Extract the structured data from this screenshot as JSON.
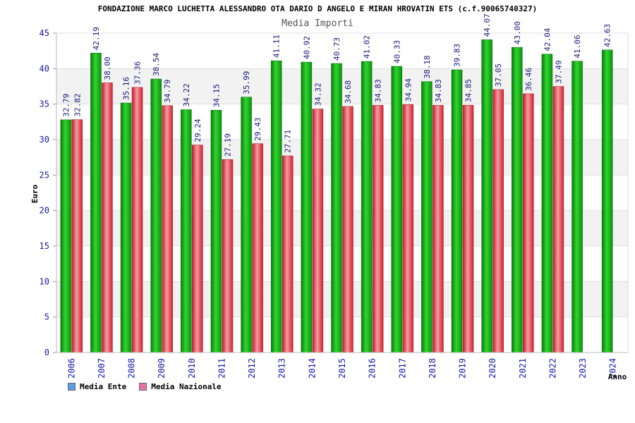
{
  "chart_data": {
    "type": "bar",
    "title": "FONDAZIONE MARCO LUCHETTA ALESSANDRO OTA DARIO D ANGELO E MIRAN HROVATIN ETS (c.f.90065740327)",
    "subtitle": "Media Importi",
    "xlabel": "Anno",
    "ylabel": "Euro",
    "ylim": [
      0,
      45
    ],
    "yticks": [
      0,
      5,
      10,
      15,
      20,
      25,
      30,
      35,
      40,
      45
    ],
    "grid": true,
    "legend_position": "bottom-left",
    "categories": [
      "2006",
      "2007",
      "2008",
      "2009",
      "2010",
      "2011",
      "2012",
      "2013",
      "2014",
      "2015",
      "2016",
      "2017",
      "2018",
      "2019",
      "2020",
      "2021",
      "2022",
      "2023",
      "2024"
    ],
    "series": [
      {
        "name": "Media Ente",
        "color": "#11b311",
        "legend_color": "#5b9ee6",
        "values": [
          32.79,
          42.19,
          35.16,
          38.54,
          34.22,
          34.15,
          35.99,
          41.11,
          40.92,
          40.73,
          41.02,
          40.33,
          38.18,
          39.83,
          44.07,
          43.0,
          42.04,
          41.06,
          42.63
        ],
        "labels": [
          "32.79",
          "42.19",
          "35.16",
          "38.54",
          "34.22",
          "34.15",
          "35.99",
          "41.11",
          "40.92",
          "40.73",
          "41.02",
          "40.33",
          "38.18",
          "39.83",
          "44.07",
          "43.00",
          "42.04",
          "41.06",
          "42.63"
        ]
      },
      {
        "name": "Media Nazionale",
        "color": "#e8323c",
        "legend_color": "#e673a8",
        "values": [
          32.82,
          38.0,
          37.36,
          34.79,
          29.24,
          27.19,
          29.43,
          27.71,
          34.32,
          34.68,
          34.83,
          34.94,
          34.83,
          34.85,
          37.05,
          36.46,
          37.49,
          null,
          null
        ],
        "labels": [
          "32.82",
          "38.00",
          "37.36",
          "34.79",
          "29.24",
          "27.19",
          "29.43",
          "27.71",
          "34.32",
          "34.68",
          "34.83",
          "34.94",
          "34.83",
          "34.85",
          "37.05",
          "36.46",
          "37.49",
          "",
          ""
        ]
      }
    ]
  }
}
